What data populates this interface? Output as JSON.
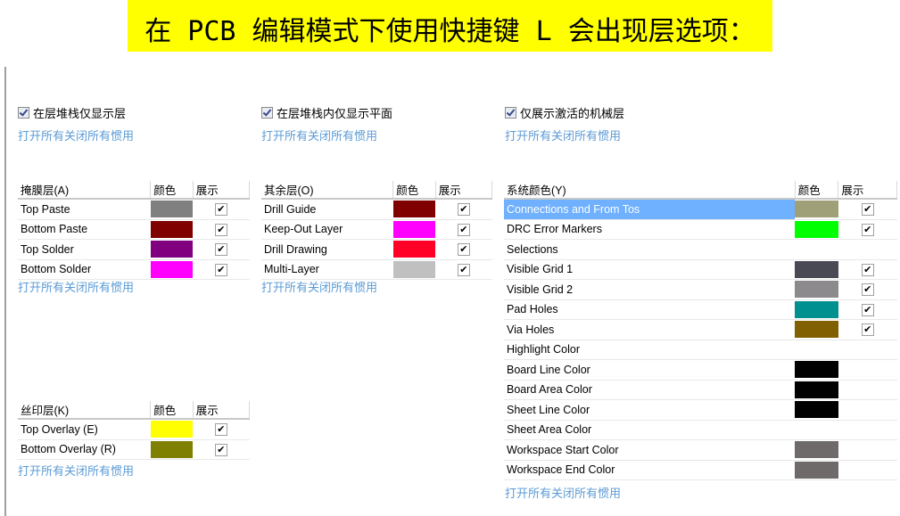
{
  "banner": "在 PCB 编辑模式下使用快捷键 L 会出现层选项：",
  "options": [
    {
      "label": "在层堆栈仅显示层",
      "checked": true
    },
    {
      "label": "在层堆栈内仅显示平面",
      "checked": true
    },
    {
      "label": "仅展示激活的机械层",
      "checked": true
    }
  ],
  "links": {
    "open_all": "打开所有",
    "close_all": "关闭所有",
    "used": "惯用"
  },
  "columns": {
    "color": "颜色",
    "show": "展示"
  },
  "tables": {
    "mask": {
      "title": "掩膜层(A)",
      "rows": [
        {
          "name": "Top Paste",
          "color": "#808080",
          "show": true
        },
        {
          "name": "Bottom Paste",
          "color": "#800000",
          "show": true
        },
        {
          "name": "Top Solder",
          "color": "#800080",
          "show": true
        },
        {
          "name": "Bottom Solder",
          "color": "#ff00ff",
          "show": true
        }
      ]
    },
    "other": {
      "title": "其余层(O)",
      "rows": [
        {
          "name": "Drill Guide",
          "color": "#800000",
          "show": true
        },
        {
          "name": "Keep-Out Layer",
          "color": "#ff00ff",
          "show": true
        },
        {
          "name": "Drill Drawing",
          "color": "#ff0026",
          "show": true
        },
        {
          "name": "Multi-Layer",
          "color": "#c0c0c0",
          "show": true
        }
      ]
    },
    "silk": {
      "title": "丝印层(K)",
      "rows": [
        {
          "name": "Top Overlay (E)",
          "color": "#ffff00",
          "show": true
        },
        {
          "name": "Bottom Overlay (R)",
          "color": "#808000",
          "show": true
        }
      ]
    },
    "system": {
      "title": "系统颜色(Y)",
      "rows": [
        {
          "name": "Connections and From Tos",
          "color": "#a0a078",
          "show": true,
          "selected": true
        },
        {
          "name": "DRC Error Markers",
          "color": "#00ff00",
          "show": true
        },
        {
          "name": "Selections",
          "color": "",
          "show": false
        },
        {
          "name": "Visible Grid 1",
          "color": "#4a4a55",
          "show": true
        },
        {
          "name": "Visible Grid 2",
          "color": "#8c8a8c",
          "show": true
        },
        {
          "name": "Pad Holes",
          "color": "#009090",
          "show": true
        },
        {
          "name": "Via Holes",
          "color": "#806000",
          "show": true
        },
        {
          "name": "Highlight Color",
          "color": "",
          "show": false
        },
        {
          "name": "Board Line Color",
          "color": "#000000",
          "show": false
        },
        {
          "name": "Board Area Color",
          "color": "#000000",
          "show": false
        },
        {
          "name": "Sheet Line Color",
          "color": "#000000",
          "show": false
        },
        {
          "name": "Sheet Area Color",
          "color": "",
          "show": false
        },
        {
          "name": "Workspace Start Color",
          "color": "#6e6a6a",
          "show": false
        },
        {
          "name": "Workspace End Color",
          "color": "#6e6a6a",
          "show": false
        }
      ]
    }
  }
}
